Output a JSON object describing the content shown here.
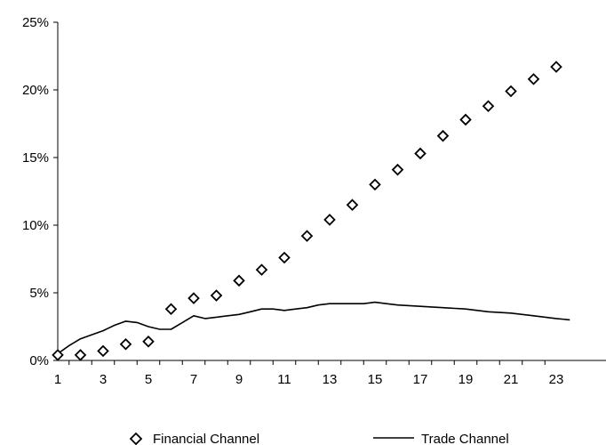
{
  "chart_data": {
    "type": "line",
    "title": "",
    "xlabel": "",
    "ylabel": "",
    "x": [
      1,
      2,
      3,
      4,
      5,
      6,
      7,
      8,
      9,
      10,
      11,
      12,
      13,
      14,
      15,
      16,
      17,
      18,
      19,
      20,
      21,
      22,
      23
    ],
    "x_tick_labels": [
      "1",
      "3",
      "5",
      "7",
      "9",
      "11",
      "13",
      "15",
      "17",
      "19",
      "21",
      "23"
    ],
    "y_tick_labels": [
      "0%",
      "5%",
      "10%",
      "15%",
      "20%",
      "25%"
    ],
    "ylim": [
      0,
      25
    ],
    "xlim": [
      1,
      23.6
    ],
    "grid": false,
    "legend_position": "bottom",
    "series": [
      {
        "name": "Financial Channel",
        "style": "diamond-markers",
        "color": "#000000",
        "values": [
          0.4,
          0.4,
          0.7,
          1.2,
          1.4,
          3.8,
          4.6,
          4.8,
          5.9,
          6.7,
          7.6,
          9.2,
          10.4,
          11.5,
          13.0,
          14.1,
          15.3,
          16.6,
          17.8,
          18.8,
          19.9,
          20.8,
          21.7
        ]
      },
      {
        "name": "Trade Channel",
        "style": "solid-line",
        "color": "#000000",
        "points": [
          [
            1,
            0.5
          ],
          [
            1.5,
            1.1
          ],
          [
            2,
            1.6
          ],
          [
            2.5,
            1.9
          ],
          [
            3,
            2.2
          ],
          [
            3.5,
            2.6
          ],
          [
            4,
            2.9
          ],
          [
            4.5,
            2.8
          ],
          [
            5,
            2.5
          ],
          [
            5.5,
            2.3
          ],
          [
            6,
            2.3
          ],
          [
            6.5,
            2.8
          ],
          [
            7,
            3.3
          ],
          [
            7.5,
            3.1
          ],
          [
            8,
            3.2
          ],
          [
            8.5,
            3.3
          ],
          [
            9,
            3.4
          ],
          [
            9.5,
            3.6
          ],
          [
            10,
            3.8
          ],
          [
            10.5,
            3.8
          ],
          [
            11,
            3.7
          ],
          [
            11.5,
            3.8
          ],
          [
            12,
            3.9
          ],
          [
            12.5,
            4.1
          ],
          [
            13,
            4.2
          ],
          [
            13.5,
            4.2
          ],
          [
            14,
            4.2
          ],
          [
            14.5,
            4.2
          ],
          [
            15,
            4.3
          ],
          [
            15.5,
            4.2
          ],
          [
            16,
            4.1
          ],
          [
            17,
            4.0
          ],
          [
            18,
            3.9
          ],
          [
            19,
            3.8
          ],
          [
            20,
            3.6
          ],
          [
            21,
            3.5
          ],
          [
            22,
            3.3
          ],
          [
            23,
            3.1
          ],
          [
            23.6,
            3.0
          ]
        ]
      }
    ]
  }
}
